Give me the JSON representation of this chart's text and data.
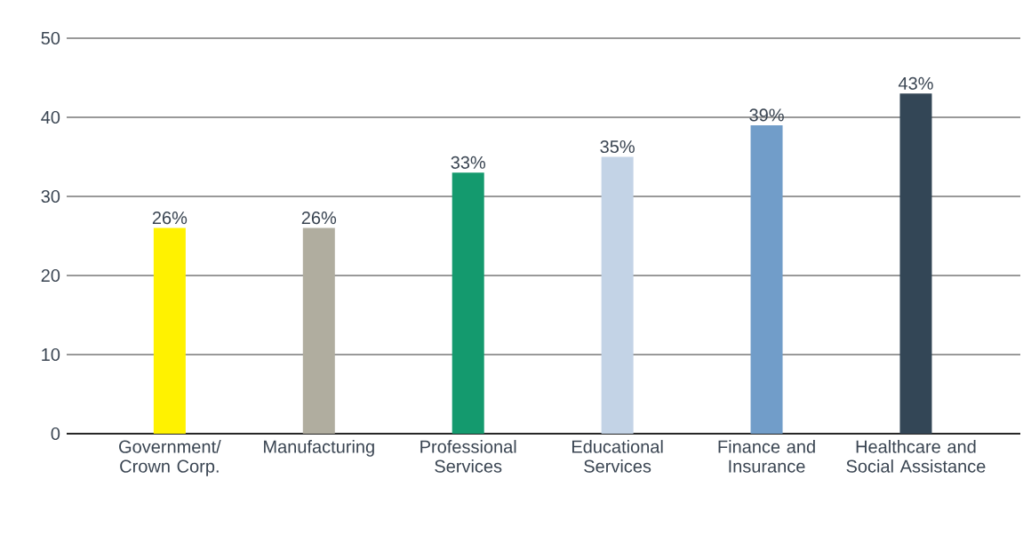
{
  "chart_data": {
    "type": "bar",
    "categories": [
      "Government/ Crown Corp.",
      "Manufacturing",
      "Professional Services",
      "Educational Services",
      "Finance and Insurance",
      "Healthcare and Social Assistance"
    ],
    "values": [
      26,
      26,
      33,
      35,
      39,
      43
    ],
    "colors": [
      "#fff200",
      "#b0ad9f",
      "#149a6e",
      "#c3d3e6",
      "#719dc9",
      "#334656"
    ],
    "value_labels": [
      "26%",
      "26%",
      "33%",
      "35%",
      "39%",
      "43%"
    ],
    "ylim": [
      0,
      50
    ],
    "yticks": [
      0,
      10,
      20,
      30,
      40,
      50
    ],
    "grid": "y"
  }
}
